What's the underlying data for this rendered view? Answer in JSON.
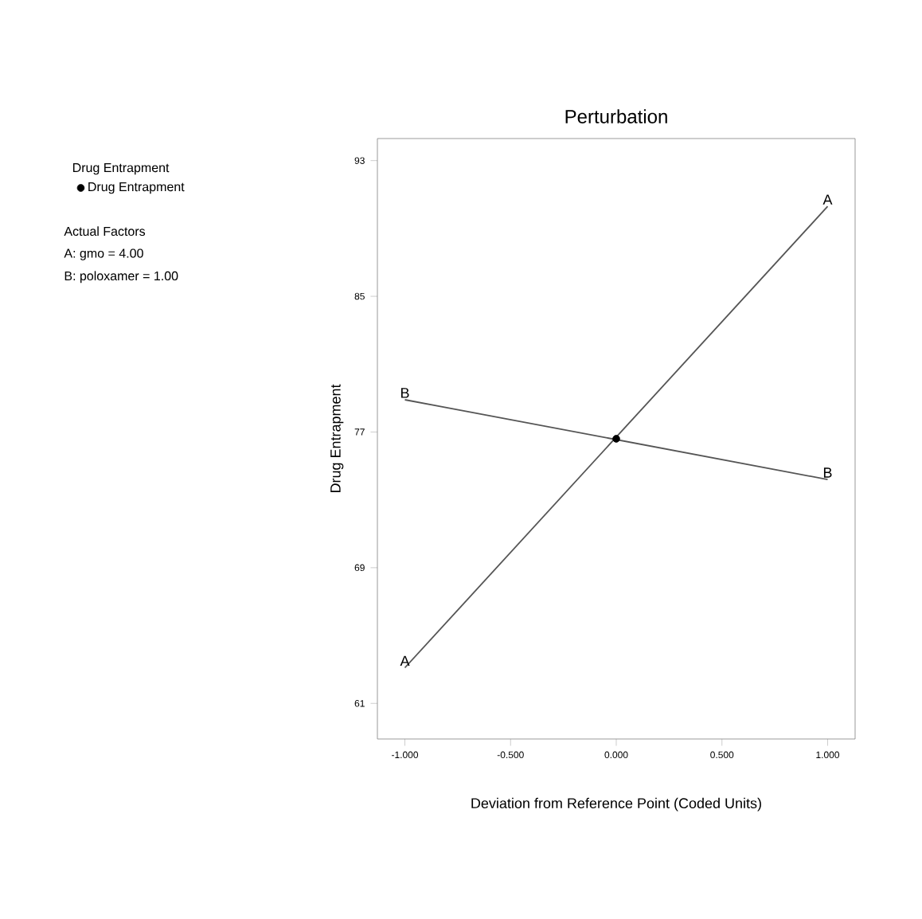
{
  "chart_data": {
    "type": "line",
    "title": "Perturbation",
    "xlabel": "Deviation from Reference Point (Coded Units)",
    "ylabel": "Drug Entrapment",
    "legend_title": "Drug Entrapment",
    "x": [
      -1,
      1
    ],
    "series": [
      {
        "name": "A",
        "color": "#555555",
        "values": [
          63.1,
          90.3
        ],
        "marker": "none"
      },
      {
        "name": "B",
        "color": "#555555",
        "values": [
          78.9,
          74.2
        ],
        "marker": "none"
      },
      {
        "name": "Drug Entrapment",
        "type": "scatter",
        "color": "#000000",
        "x": [
          0
        ],
        "values": [
          76.6
        ],
        "marker": "circle"
      }
    ],
    "xlim": [
      -1.13,
      1.13
    ],
    "ylim": [
      58.9,
      94.3
    ],
    "xticks": [
      {
        "value": -1,
        "label": "-1.000"
      },
      {
        "value": -0.5,
        "label": "-0.500"
      },
      {
        "value": 0,
        "label": "0.000"
      },
      {
        "value": 0.5,
        "label": "0.500"
      },
      {
        "value": 1,
        "label": "1.000"
      }
    ],
    "yticks": [
      61,
      69,
      77,
      85,
      93
    ],
    "grid": false,
    "legend": "left",
    "annotations": [
      "Actual Factors",
      "A: gmo = 4.00",
      "B: poloxamer = 1.00"
    ]
  }
}
